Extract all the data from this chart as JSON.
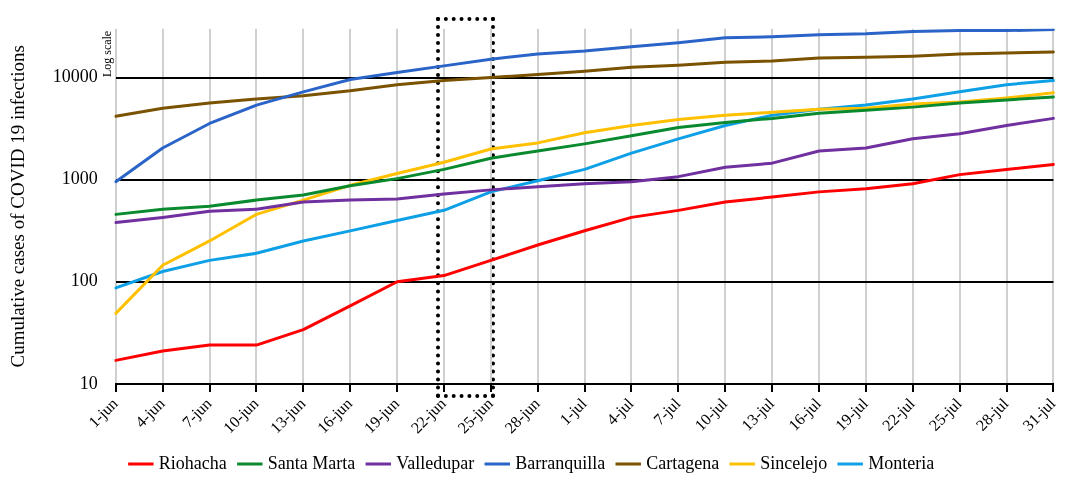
{
  "chart_data": {
    "type": "line",
    "ylabel": "Cumulative cases of COVID 19 infections",
    "log": "y",
    "grid": true,
    "legend": "bottom",
    "marker": "none",
    "line_style": "solid",
    "categories": [
      "1-jun",
      "4-jun",
      "7-jun",
      "10-jun",
      "13-jun",
      "16-jun",
      "19-jun",
      "22-jun",
      "25-jun",
      "28-jun",
      "1-jul",
      "4-jul",
      "7-jul",
      "10-jul",
      "13-jul",
      "16-jul",
      "19-jul",
      "22-jul",
      "25-jul",
      "28-jul",
      "31-jul"
    ],
    "ylim": [
      10,
      30000
    ],
    "yticks": [
      10,
      100,
      1000,
      10000
    ],
    "annotations": [
      "Log scale"
    ],
    "series": [
      {
        "name": "Riohacha",
        "color": "#ff0000",
        "values": [
          17,
          21,
          24,
          24,
          34,
          58,
          100,
          115,
          162,
          229,
          316,
          427,
          500,
          603,
          676,
          759,
          813,
          912,
          1120,
          1260,
          1410
        ]
      },
      {
        "name": "Santa Marta",
        "color": "#0a8a2e",
        "values": [
          457,
          513,
          550,
          631,
          708,
          870,
          1023,
          1260,
          1622,
          1905,
          2240,
          2690,
          3240,
          3630,
          3980,
          4470,
          4790,
          5130,
          5620,
          6030,
          6460
        ]
      },
      {
        "name": "Valledupar",
        "color": "#7030a0",
        "values": [
          380,
          427,
          490,
          513,
          603,
          631,
          646,
          724,
          794,
          851,
          912,
          955,
          1070,
          1320,
          1450,
          1905,
          2040,
          2510,
          2820,
          3390,
          3980
        ]
      },
      {
        "name": "Barranquilla",
        "color": "#2a64c8",
        "values": [
          955,
          2040,
          3550,
          5370,
          7240,
          9550,
          11200,
          13000,
          15100,
          17000,
          18200,
          20000,
          21900,
          24500,
          25100,
          26300,
          26900,
          28200,
          28800,
          28800,
          29500
        ]
      },
      {
        "name": "Cartagena",
        "color": "#7a5200",
        "values": [
          4170,
          5010,
          5620,
          6170,
          6640,
          7410,
          8510,
          9330,
          10000,
          10700,
          11500,
          12600,
          13200,
          14100,
          14500,
          15500,
          15800,
          16200,
          17000,
          17400,
          17800
        ]
      },
      {
        "name": "Sincelejo",
        "color": "#ffc000",
        "values": [
          49,
          145,
          251,
          457,
          631,
          880,
          1150,
          1480,
          1995,
          2290,
          2880,
          3390,
          3890,
          4270,
          4570,
          4900,
          5010,
          5500,
          5750,
          6310,
          7080
        ]
      },
      {
        "name": "Monteria",
        "color": "#0ea0e6",
        "values": [
          87,
          126,
          162,
          190,
          251,
          315,
          398,
          501,
          759,
          977,
          1260,
          1820,
          2510,
          3390,
          4270,
          4900,
          5370,
          6170,
          7240,
          8510,
          9330
        ]
      }
    ]
  }
}
